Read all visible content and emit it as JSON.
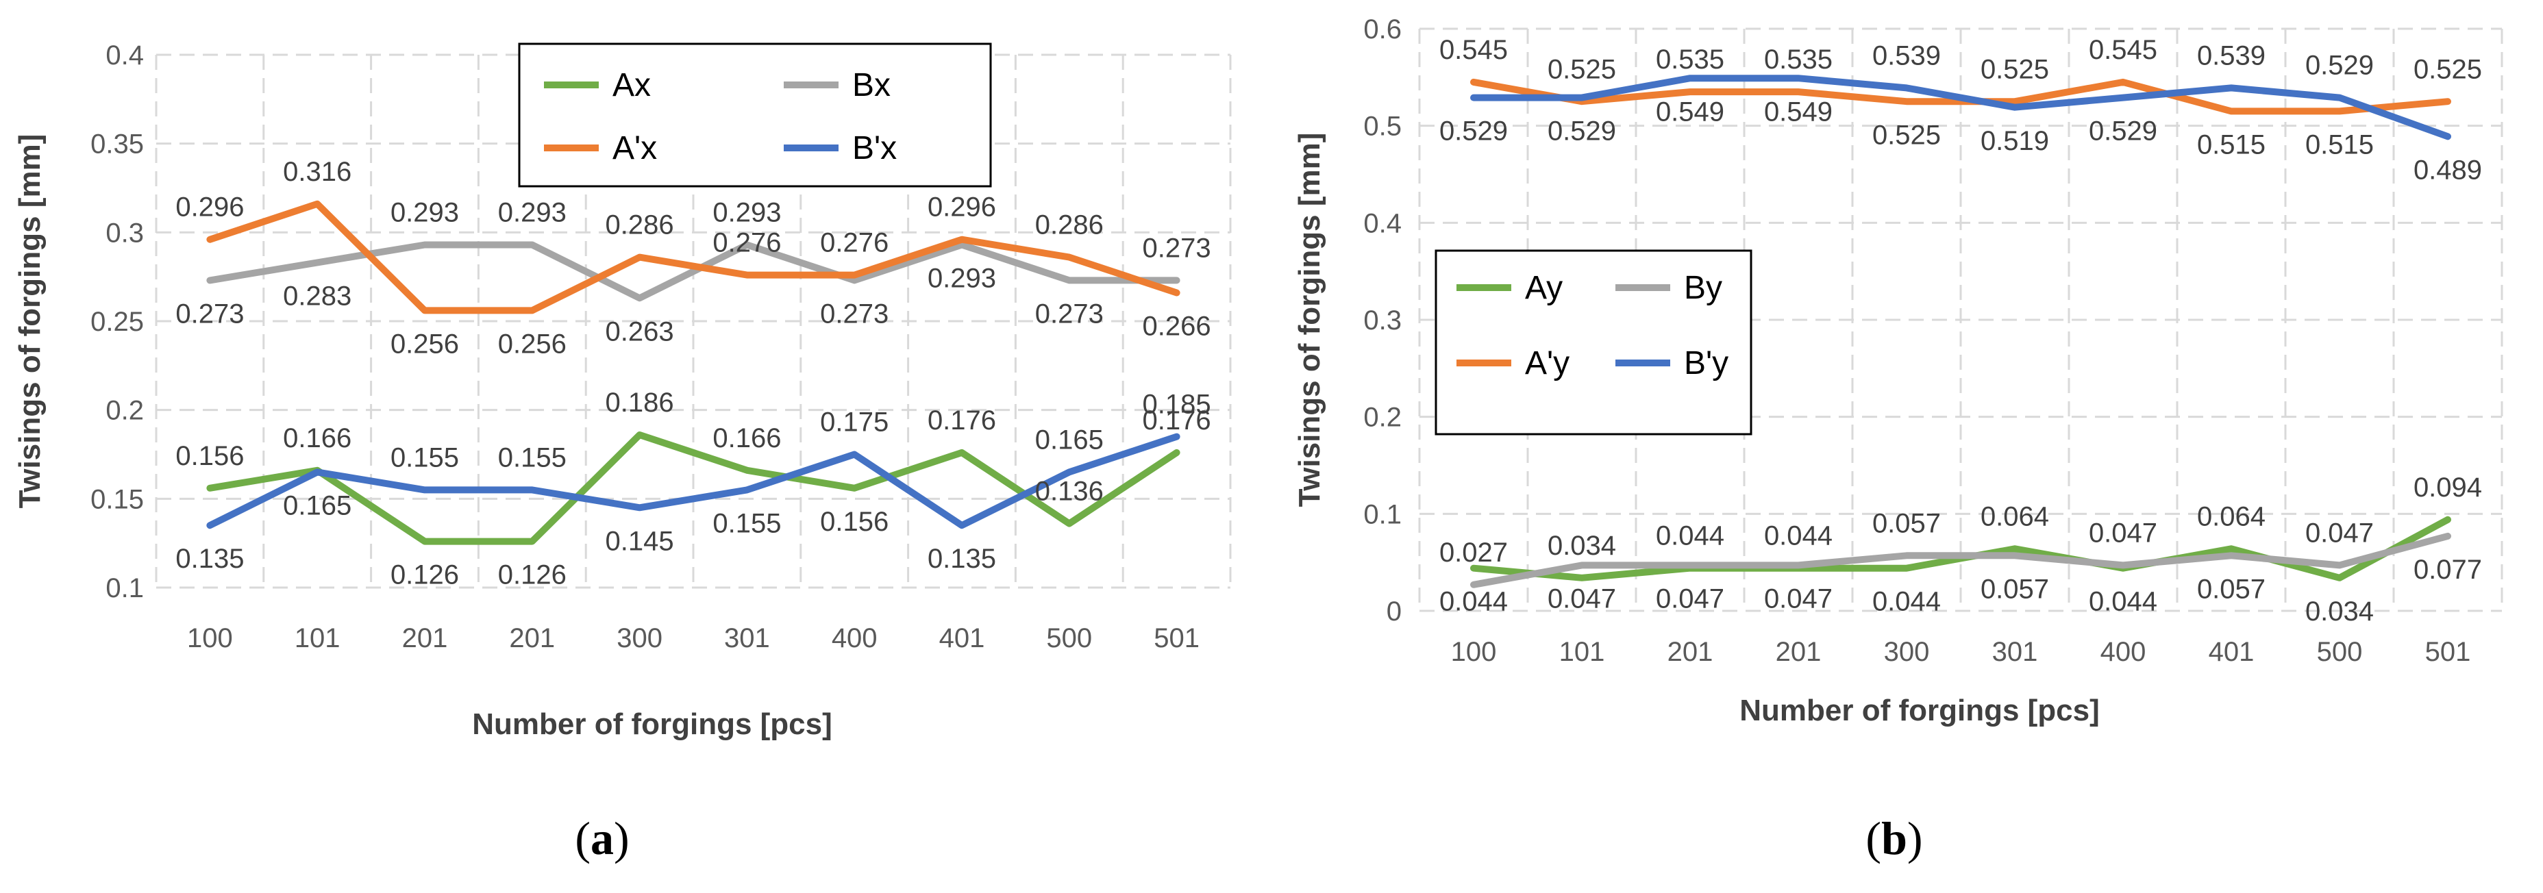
{
  "chart_data": [
    {
      "type": "line",
      "title": "",
      "xlabel": "Number of forgings [pcs]",
      "ylabel": "Twisings of forgings [mm]",
      "categories": [
        "100",
        "101",
        "201",
        "201",
        "300",
        "301",
        "400",
        "401",
        "500",
        "501"
      ],
      "ylim": [
        0.1,
        0.4
      ],
      "yticks": [
        "0.1",
        "0.15",
        "0.2",
        "0.25",
        "0.3",
        "0.35",
        "0.4"
      ],
      "ytick_values": [
        0.1,
        0.15,
        0.2,
        0.25,
        0.3,
        0.35,
        0.4
      ],
      "grid": true,
      "legend_position": "top-center",
      "series": [
        {
          "name": "Ax",
          "color": "#70ad47",
          "values": [
            0.156,
            0.166,
            0.126,
            0.126,
            0.186,
            0.166,
            0.156,
            0.176,
            0.136,
            0.176
          ],
          "labels": [
            "0.156",
            "0.166",
            "0.126",
            "0.126",
            "0.186",
            "0.166",
            "0.156",
            "0.176",
            "0.136",
            "0.176"
          ]
        },
        {
          "name": "Bx",
          "color": "#a5a5a5",
          "values": [
            0.273,
            0.283,
            0.293,
            0.293,
            0.263,
            0.293,
            0.273,
            0.293,
            0.273,
            0.273
          ],
          "labels": [
            "0.273",
            "0.283",
            "0.293",
            "0.293",
            "0.263",
            "0.293",
            "0.273",
            "0.293",
            "0.273",
            "0.273"
          ]
        },
        {
          "name": "A'x",
          "color": "#ed7d31",
          "values": [
            0.296,
            0.316,
            0.256,
            0.256,
            0.286,
            0.276,
            0.276,
            0.296,
            0.286,
            0.266
          ],
          "labels": [
            "0.296",
            "0.316",
            "0.256",
            "0.256",
            "0.286",
            "0.276",
            "0.276",
            "0.296",
            "0.286",
            "0.266"
          ]
        },
        {
          "name": "B'x",
          "color": "#4472c4",
          "values": [
            0.135,
            0.165,
            0.155,
            0.155,
            0.145,
            0.155,
            0.175,
            0.135,
            0.165,
            0.185
          ],
          "labels": [
            "0.135",
            "0.165",
            "0.155",
            "0.155",
            "0.145",
            "0.155",
            "0.175",
            "0.135",
            "0.165",
            "0.185"
          ]
        }
      ],
      "caption": {
        "open": "(",
        "letter": "a",
        "close": ")"
      }
    },
    {
      "type": "line",
      "title": "",
      "xlabel": "Number of forgings [pcs]",
      "ylabel": "Twisings of forgings [mm]",
      "categories": [
        "100",
        "101",
        "201",
        "201",
        "300",
        "301",
        "400",
        "401",
        "500",
        "501"
      ],
      "ylim": [
        0,
        0.6
      ],
      "yticks": [
        "0",
        "0.1",
        "0.2",
        "0.3",
        "0.4",
        "0.5",
        "0.6"
      ],
      "ytick_values": [
        0,
        0.1,
        0.2,
        0.3,
        0.4,
        0.5,
        0.6
      ],
      "grid": true,
      "legend_position": "left-middle",
      "series": [
        {
          "name": "Ay",
          "color": "#70ad47",
          "values": [
            0.044,
            0.034,
            0.044,
            0.044,
            0.044,
            0.064,
            0.044,
            0.064,
            0.034,
            0.094
          ],
          "labels": [
            "0.044",
            "0.034",
            "0.044",
            "0.044",
            "0.044",
            "0.064",
            "0.044",
            "0.064",
            "0.034",
            "0.094"
          ]
        },
        {
          "name": "By",
          "color": "#a5a5a5",
          "values": [
            0.027,
            0.047,
            0.047,
            0.047,
            0.057,
            0.057,
            0.047,
            0.057,
            0.047,
            0.077
          ],
          "labels": [
            "0.027",
            "0.047",
            "0.047",
            "0.047",
            "0.057",
            "0.057",
            "0.047",
            "0.057",
            "0.047",
            "0.077"
          ]
        },
        {
          "name": "A'y",
          "color": "#ed7d31",
          "values": [
            0.545,
            0.525,
            0.535,
            0.535,
            0.525,
            0.525,
            0.545,
            0.515,
            0.515,
            0.525
          ],
          "labels": [
            "0.545",
            "0.525",
            "0.535",
            "0.535",
            "0.525",
            "0.525",
            "0.545",
            "0.515",
            "0.515",
            "0.525"
          ]
        },
        {
          "name": "B'y",
          "color": "#4472c4",
          "values": [
            0.529,
            0.529,
            0.549,
            0.549,
            0.539,
            0.519,
            0.529,
            0.539,
            0.529,
            0.489
          ],
          "labels": [
            "0.529",
            "0.529",
            "0.549",
            "0.549",
            "0.539",
            "0.519",
            "0.529",
            "0.539",
            "0.529",
            "0.489"
          ]
        }
      ],
      "caption": {
        "open": "(",
        "letter": "b",
        "close": ")"
      }
    }
  ]
}
